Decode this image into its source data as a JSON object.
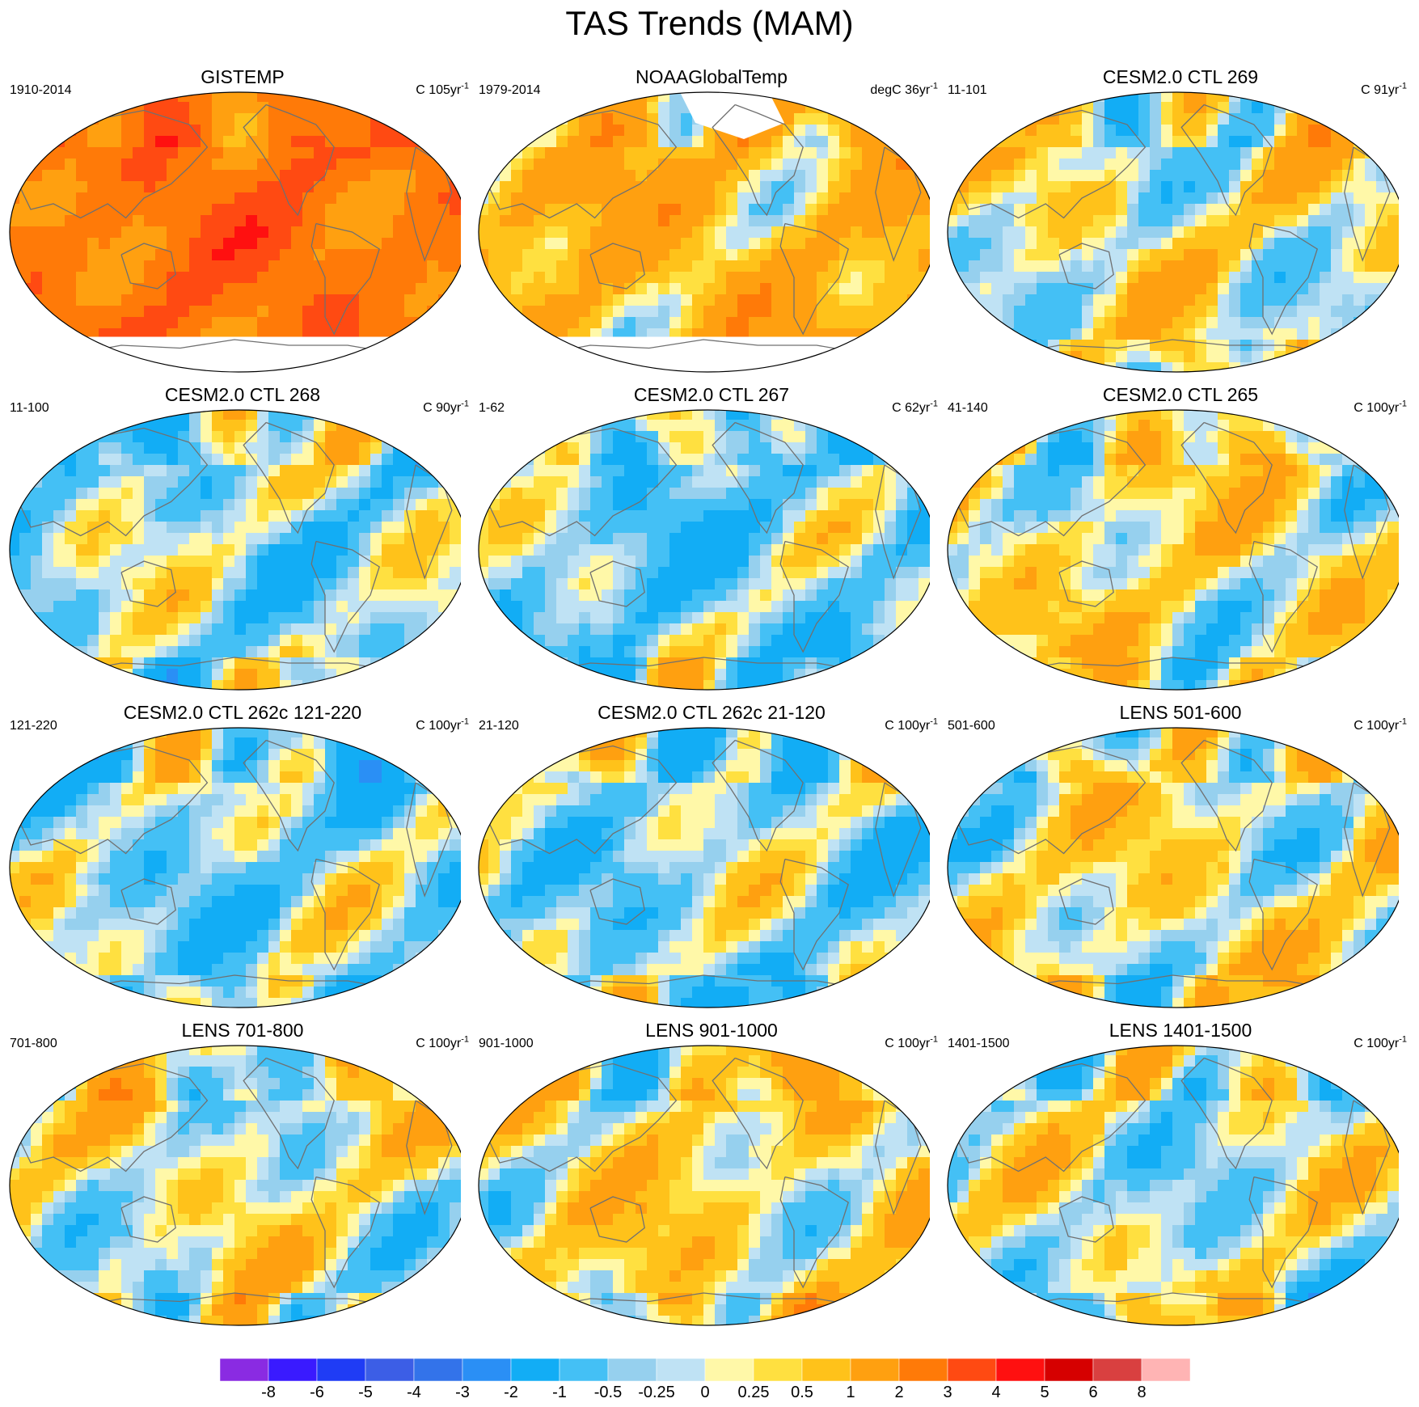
{
  "title": "TAS Trends (MAM)",
  "panels": [
    {
      "title": "GISTEMP",
      "left": "1910-2014",
      "units": "C 105yr",
      "warmth": 2.6,
      "antarctic_mask": true
    },
    {
      "title": "NOAAGlobalTemp",
      "left": "1979-2014",
      "units": "degC 36yr",
      "warmth": 0.9,
      "antarctic_mask": true,
      "arctic_mask": true
    },
    {
      "title": "CESM2.0 CTL 269",
      "left": "11-101",
      "units": "C 91yr",
      "warmth": 0.15
    },
    {
      "title": "CESM2.0 CTL 268",
      "left": "11-100",
      "units": "C 90yr",
      "warmth": -0.25
    },
    {
      "title": "CESM2.0 CTL 267",
      "left": "1-62",
      "units": "C 62yr",
      "warmth": -0.5
    },
    {
      "title": "CESM2.0 CTL 265",
      "left": "41-140",
      "units": "C 100yr",
      "warmth": 0.25
    },
    {
      "title": "CESM2.0 CTL 262c 121-220",
      "left": "121-220",
      "units": "C 100yr",
      "warmth": -0.35
    },
    {
      "title": "CESM2.0 CTL 262c 21-120",
      "left": "21-120",
      "units": "C 100yr",
      "warmth": -0.3
    },
    {
      "title": "LENS 501-600",
      "left": "501-600",
      "units": "C 100yr",
      "warmth": 0.2
    },
    {
      "title": "LENS 701-800",
      "left": "701-800",
      "units": "C 100yr",
      "warmth": 0.1
    },
    {
      "title": "LENS 901-1000",
      "left": "901-1000",
      "units": "C 100yr",
      "warmth": 0.35
    },
    {
      "title": "LENS 1401-1500",
      "left": "1401-1500",
      "units": "C 100yr",
      "warmth": -0.05
    }
  ],
  "units_superscript": "-1",
  "colorbar": {
    "colors": [
      "#8a2be2",
      "#3a1aff",
      "#1f3cf5",
      "#3c5ee6",
      "#3373ea",
      "#2a8ff5",
      "#12adf5",
      "#44c0f5",
      "#96d0ee",
      "#bfe2f4",
      "#fff8a8",
      "#ffe040",
      "#ffc21a",
      "#ffa010",
      "#ff7a08",
      "#ff4a12",
      "#ff1010",
      "#d60000",
      "#d94040",
      "#ffb4b4"
    ],
    "labels": [
      "-8",
      "-6",
      "-5",
      "-4",
      "-3",
      "-2",
      "-1",
      "-0.5",
      "-0.25",
      "0",
      "0.25",
      "0.5",
      "1",
      "2",
      "3",
      "4",
      "5",
      "6",
      "8"
    ]
  }
}
